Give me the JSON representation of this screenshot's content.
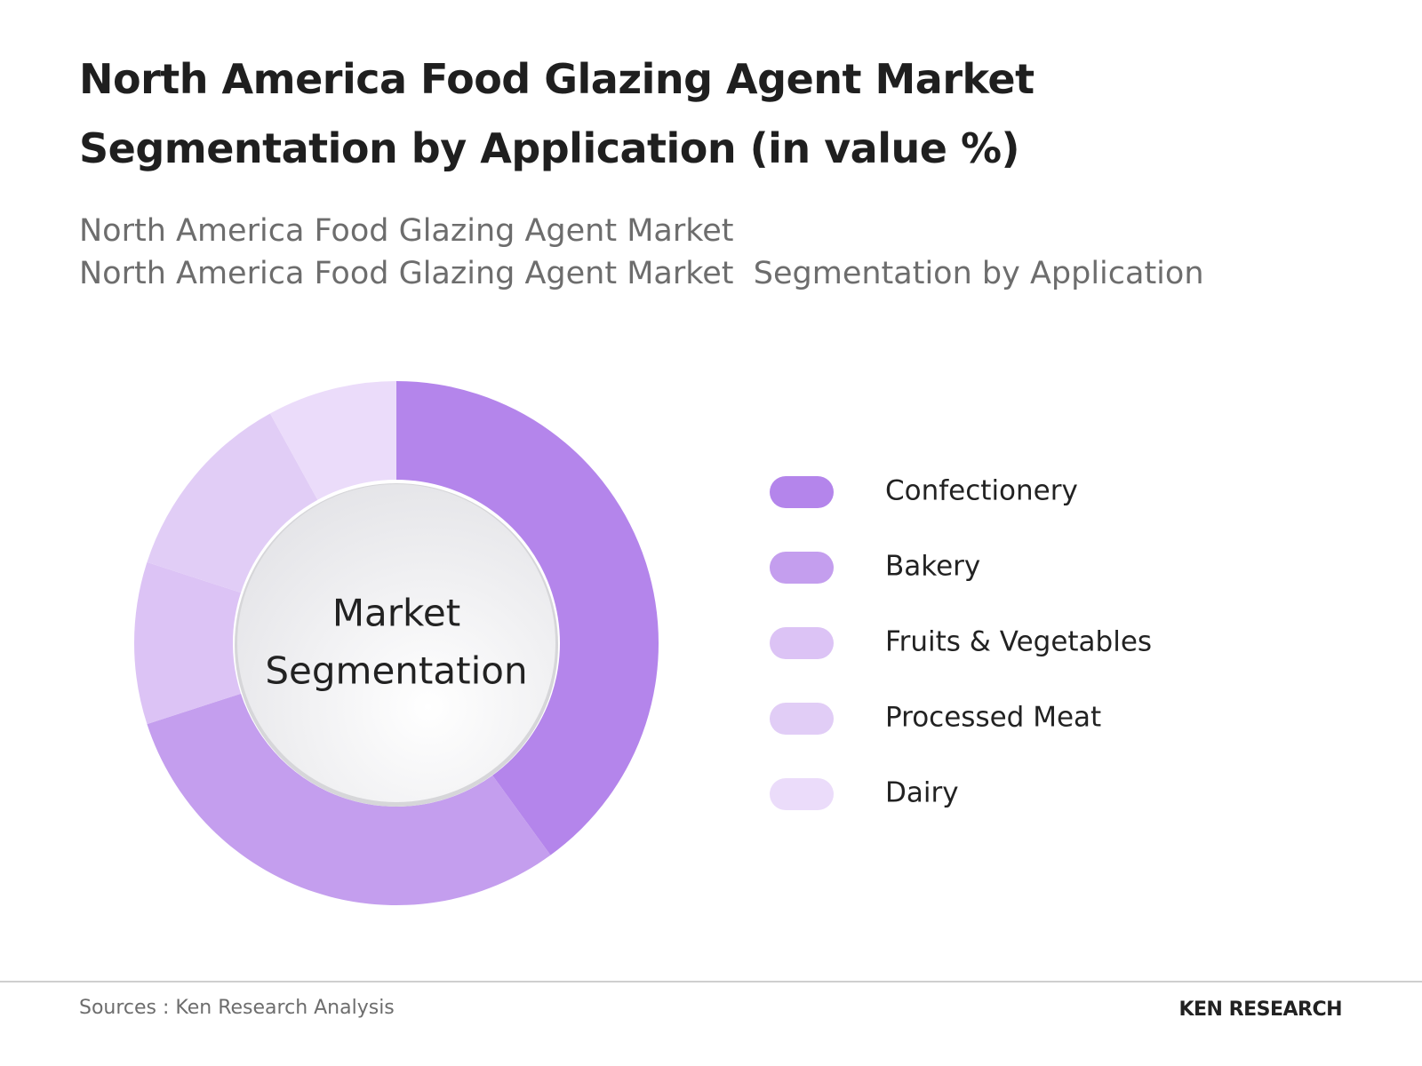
{
  "chart_data": {
    "type": "pie",
    "title": "North America Food Glazing Agent Market Segmentation by Application (in value %)",
    "subtitle": [
      "North America Food Glazing Agent Market",
      "North America Food Glazing Agent Market  Segmentation by Application"
    ],
    "center_label": [
      "Market",
      "Segmentation"
    ],
    "categories": [
      "Confectionery",
      "Bakery",
      "Fruits & Vegetables",
      "Processed Meat",
      "Dairy"
    ],
    "values": [
      40,
      30,
      10,
      12,
      8
    ],
    "colors": [
      "#b485eb",
      "#c49eee",
      "#dcc3f5",
      "#e1cdf6",
      "#ebdcfa"
    ],
    "legend": "right"
  },
  "footer": {
    "source": "Sources : Ken Research Analysis",
    "logo": "KEN RESEARCH"
  }
}
